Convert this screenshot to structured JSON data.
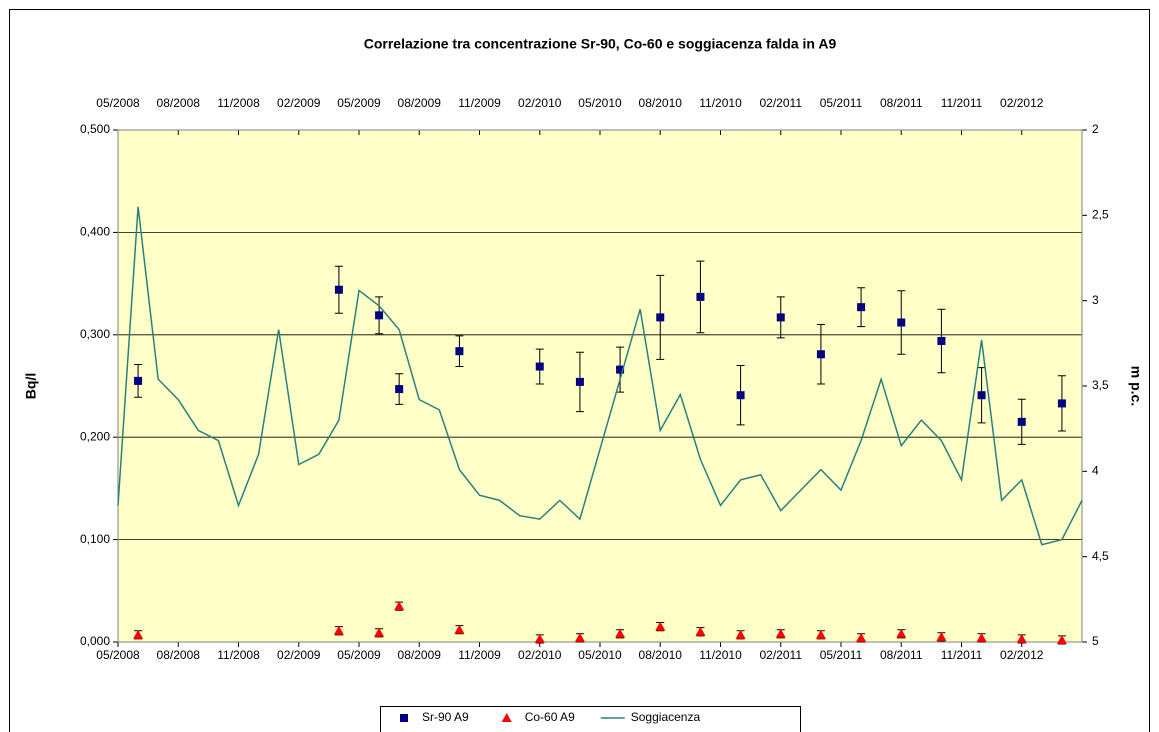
{
  "chart_data": {
    "type": "scatter",
    "title": "Correlazione tra concentrazione Sr-90, Co-60 e soggiacenza falda in A9",
    "ylabel": "Bq/l",
    "y2label": "m p.c.",
    "xlim": [
      "05/2008",
      "05/2012"
    ],
    "xticks": [
      "05/2008",
      "08/2008",
      "11/2008",
      "02/2009",
      "05/2009",
      "08/2009",
      "11/2009",
      "02/2010",
      "05/2010",
      "08/2010",
      "11/2010",
      "02/2011",
      "05/2011",
      "08/2011",
      "11/2011",
      "02/2012"
    ],
    "ylim": [
      0,
      0.5
    ],
    "yticks": [
      {
        "value": 0,
        "label": "0,000"
      },
      {
        "value": 0.1,
        "label": "0,100"
      },
      {
        "value": 0.2,
        "label": "0,200"
      },
      {
        "value": 0.3,
        "label": "0,300"
      },
      {
        "value": 0.4,
        "label": "0,400"
      },
      {
        "value": 0.5,
        "label": "0,500"
      }
    ],
    "y2lim": [
      5,
      2
    ],
    "y2ticks": [
      2,
      {
        "value": 2.5,
        "label": "2,5"
      },
      3,
      {
        "value": 3.5,
        "label": "3,5"
      },
      4,
      {
        "value": 4.5,
        "label": "4,5"
      },
      5
    ],
    "grid": true,
    "background": "#ffffc8",
    "legend": "bottom",
    "series": [
      {
        "name": "Sr-90 A9",
        "color": "#000080",
        "marker": "square",
        "x": [
          "06/2008",
          "04/2009",
          "06/2009",
          "07/2009",
          "10/2009",
          "02/2010",
          "04/2010",
          "06/2010",
          "08/2010",
          "10/2010",
          "12/2010",
          "02/2011",
          "04/2011",
          "06/2011",
          "08/2011",
          "10/2011",
          "12/2011",
          "02/2012",
          "04/2012"
        ],
        "values": [
          0.255,
          0.344,
          0.319,
          0.247,
          0.284,
          0.269,
          0.254,
          0.266,
          0.317,
          0.337,
          0.241,
          0.317,
          0.281,
          0.327,
          0.312,
          0.294,
          0.241,
          0.215,
          0.233
        ],
        "errors": [
          0.016,
          0.023,
          0.018,
          0.015,
          0.015,
          0.017,
          0.029,
          0.022,
          0.041,
          0.035,
          0.029,
          0.02,
          0.029,
          0.019,
          0.031,
          0.031,
          0.027,
          0.022,
          0.027
        ]
      },
      {
        "name": "Co-60 A9",
        "color": "#ff0000",
        "marker": "triangle",
        "x": [
          "06/2008",
          "04/2009",
          "06/2009",
          "07/2009",
          "10/2009",
          "02/2010",
          "04/2010",
          "06/2010",
          "08/2010",
          "10/2010",
          "12/2010",
          "02/2011",
          "04/2011",
          "06/2011",
          "08/2011",
          "10/2011",
          "12/2011",
          "02/2012",
          "04/2012"
        ],
        "values": [
          0.007,
          0.011,
          0.009,
          0.035,
          0.012,
          0.003,
          0.004,
          0.008,
          0.015,
          0.01,
          0.007,
          0.008,
          0.007,
          0.004,
          0.008,
          0.005,
          0.004,
          0.003,
          0.002
        ],
        "errors": [
          0.004,
          0.004,
          0.004,
          0.004,
          0.004,
          0.004,
          0.004,
          0.004,
          0.004,
          0.004,
          0.004,
          0.004,
          0.004,
          0.004,
          0.004,
          0.004,
          0.004,
          0.004,
          0.004
        ]
      },
      {
        "name": "Soggiacenza",
        "color": "#2a8080",
        "type": "line",
        "axis": "y2",
        "x": [
          "05/2008",
          "06/2008",
          "07/2008",
          "08/2008",
          "09/2008",
          "10/2008",
          "11/2008",
          "12/2008",
          "01/2009",
          "02/2009",
          "03/2009",
          "04/2009",
          "05/2009",
          "06/2009",
          "07/2009",
          "08/2009",
          "09/2009",
          "10/2009",
          "11/2009",
          "12/2009",
          "01/2010",
          "02/2010",
          "03/2010",
          "04/2010",
          "05/2010",
          "06/2010",
          "07/2010",
          "08/2010",
          "09/2010",
          "10/2010",
          "11/2010",
          "12/2010",
          "01/2011",
          "02/2011",
          "03/2011",
          "04/2011",
          "05/2011",
          "06/2011",
          "07/2011",
          "08/2011",
          "09/2011",
          "10/2011",
          "11/2011",
          "12/2011",
          "01/2012",
          "02/2012",
          "03/2012",
          "04/2012",
          "05/2012"
        ],
        "values": [
          4.2,
          2.45,
          3.46,
          3.58,
          3.76,
          3.82,
          4.2,
          3.9,
          3.17,
          3.96,
          3.9,
          3.7,
          2.94,
          3.03,
          3.17,
          3.58,
          3.64,
          3.99,
          4.14,
          4.17,
          4.26,
          4.28,
          4.17,
          4.28,
          3.87,
          3.46,
          3.05,
          3.76,
          3.55,
          3.93,
          4.2,
          4.05,
          4.02,
          4.23,
          4.11,
          3.99,
          4.11,
          3.82,
          3.46,
          3.85,
          3.7,
          3.82,
          4.05,
          3.23,
          4.17,
          4.05,
          4.43,
          4.4,
          4.17
        ]
      }
    ]
  }
}
